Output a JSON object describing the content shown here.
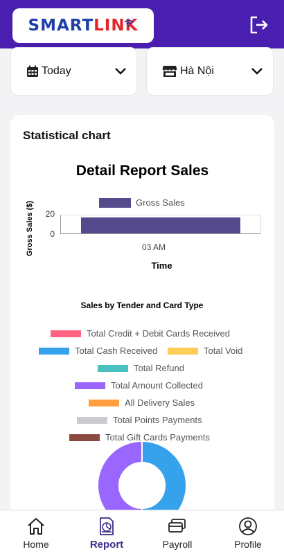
{
  "header": {
    "logo_text_a": "SMART",
    "logo_text_b": "LINK",
    "logo_accent": "#e5252a",
    "brand_color": "#4a1fb0",
    "logout_icon": "logout-icon"
  },
  "filters": {
    "date": {
      "icon": "calendar-icon",
      "value": "Today"
    },
    "store": {
      "icon": "store-icon",
      "value": "Hà Nội"
    }
  },
  "card": {
    "title": "Statistical chart"
  },
  "chart_data": [
    {
      "type": "bar",
      "title": "Detail Report Sales",
      "categories": [
        "03 AM"
      ],
      "series": [
        {
          "name": "Gross Sales",
          "values": [
            18
          ],
          "color": "#554a8c"
        }
      ],
      "xlabel": "Time",
      "ylabel": "Gross Sales ($)",
      "yticks": [
        "20",
        "0"
      ],
      "ylim": [
        0,
        20
      ],
      "legend": "top",
      "grid": false
    },
    {
      "type": "pie",
      "title": "Sales by Tender and Card Type",
      "legend": "top",
      "series": [
        {
          "name": "Total Credit + Debit Cards Received",
          "color": "#ff6384",
          "value": 0
        },
        {
          "name": "Total Cash Received",
          "color": "#36a2eb",
          "value": 50
        },
        {
          "name": "Total Void",
          "color": "#ffcd56",
          "value": 0
        },
        {
          "name": "Total Refund",
          "color": "#4bc0c0",
          "value": 0
        },
        {
          "name": "Total Amount Collected",
          "color": "#9966ff",
          "value": 50
        },
        {
          "name": "All Delivery Sales",
          "color": "#ff9f40",
          "value": 0
        },
        {
          "name": "Total Points Payments",
          "color": "#c9cbcf",
          "value": 0
        },
        {
          "name": "Total Gift Cards Payments",
          "color": "#8b4a3f",
          "value": 0
        }
      ]
    }
  ],
  "tabs": [
    {
      "label": "Home",
      "icon": "home-icon",
      "active": false
    },
    {
      "label": "Report",
      "icon": "report-icon",
      "active": true
    },
    {
      "label": "Payroll",
      "icon": "payroll-icon",
      "active": false
    },
    {
      "label": "Profile",
      "icon": "profile-icon",
      "active": false
    }
  ]
}
